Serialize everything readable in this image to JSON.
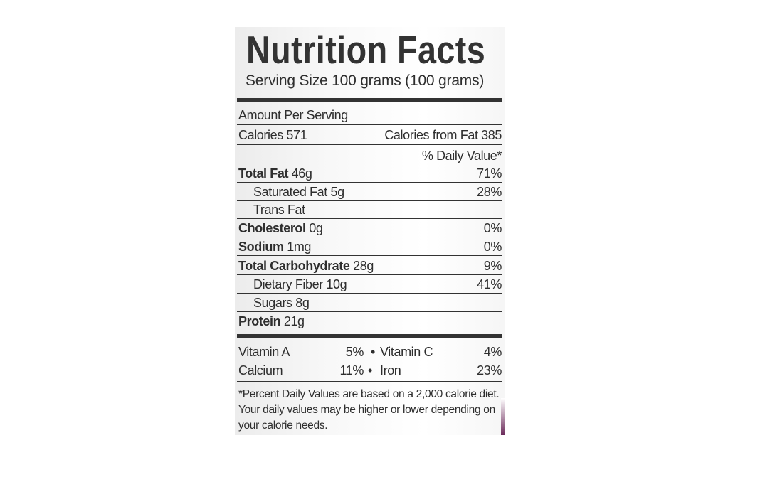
{
  "label": {
    "title": "Nutrition Facts",
    "serving_size": "Serving Size 100 grams (100 grams)",
    "amount_per_serving": "Amount Per Serving",
    "calories": "Calories 571",
    "calories_from_fat": "Calories from Fat 385",
    "daily_value_header": "% Daily Value*",
    "rows": [
      {
        "name": "Total Fat",
        "amount": "46g",
        "dv": "71%"
      },
      {
        "name": "Saturated Fat",
        "amount": "5g",
        "dv": "28%"
      },
      {
        "name": "Trans Fat"
      },
      {
        "name": "Cholesterol",
        "amount": "0g",
        "dv": "0%"
      },
      {
        "name": "Sodium",
        "amount": "1mg",
        "dv": "0%"
      },
      {
        "name": "Total Carbohydrate",
        "amount": "28g",
        "dv": "9%"
      },
      {
        "name": "Dietary Fiber",
        "amount": "10g",
        "dv": "41%"
      },
      {
        "name": "Sugars",
        "amount": "8g"
      },
      {
        "name": "Protein",
        "amount": "21g"
      }
    ],
    "vitamins": [
      {
        "left": "Vitamin A",
        "left_dv": "5%",
        "separator": "•",
        "right": "Vitamin C",
        "right_dv": "4%"
      },
      {
        "left": "Calcium",
        "left_dv": "11%",
        "separator": "•",
        "right": "Iron",
        "right_dv": "23%"
      }
    ],
    "footnote": [
      "*Percent Daily Values are based on a 2,000 calorie diet.",
      "Your daily values may be higher or lower depending on",
      "your calorie needs."
    ]
  }
}
